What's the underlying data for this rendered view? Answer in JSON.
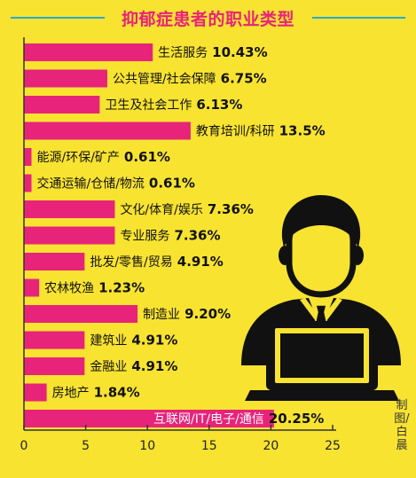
{
  "title": "抑郁症患者的职业类型",
  "credit": "制图/白晨",
  "colors": {
    "background": "#F8E330",
    "bar": "#E8237A",
    "title": "#E8237A",
    "title_line": "#2AA9D9",
    "axis": "#333333",
    "icon": "#111111"
  },
  "chart_data": {
    "type": "bar",
    "orientation": "horizontal",
    "title": "抑郁症患者的职业类型",
    "unit": "%",
    "categories": [
      "生活服务",
      "公共管理/社会保障",
      "卫生及社会工作",
      "教育培训/科研",
      "能源/环保/矿产",
      "交通运输/仓储/物流",
      "文化/体育/娱乐",
      "专业服务",
      "批发/零售/贸易",
      "农林牧渔",
      "制造业",
      "建筑业",
      "金融业",
      "房地产",
      "互联网/IT/电子/通信"
    ],
    "values": [
      10.43,
      6.75,
      6.13,
      13.5,
      0.61,
      0.61,
      7.36,
      7.36,
      4.91,
      1.23,
      9.2,
      4.91,
      4.91,
      1.84,
      20.25
    ],
    "value_labels": [
      "10.43%",
      "6.75%",
      "6.13%",
      "13.5%",
      "0.61%",
      "0.61%",
      "7.36%",
      "7.36%",
      "4.91%",
      "1.23%",
      "9.20%",
      "4.91%",
      "4.91%",
      "1.84%",
      "20.25%"
    ],
    "xlim": [
      0,
      25
    ],
    "xticks": [
      "0",
      "5",
      "10",
      "15",
      "20",
      "25"
    ],
    "grid": false,
    "legend": "none"
  }
}
